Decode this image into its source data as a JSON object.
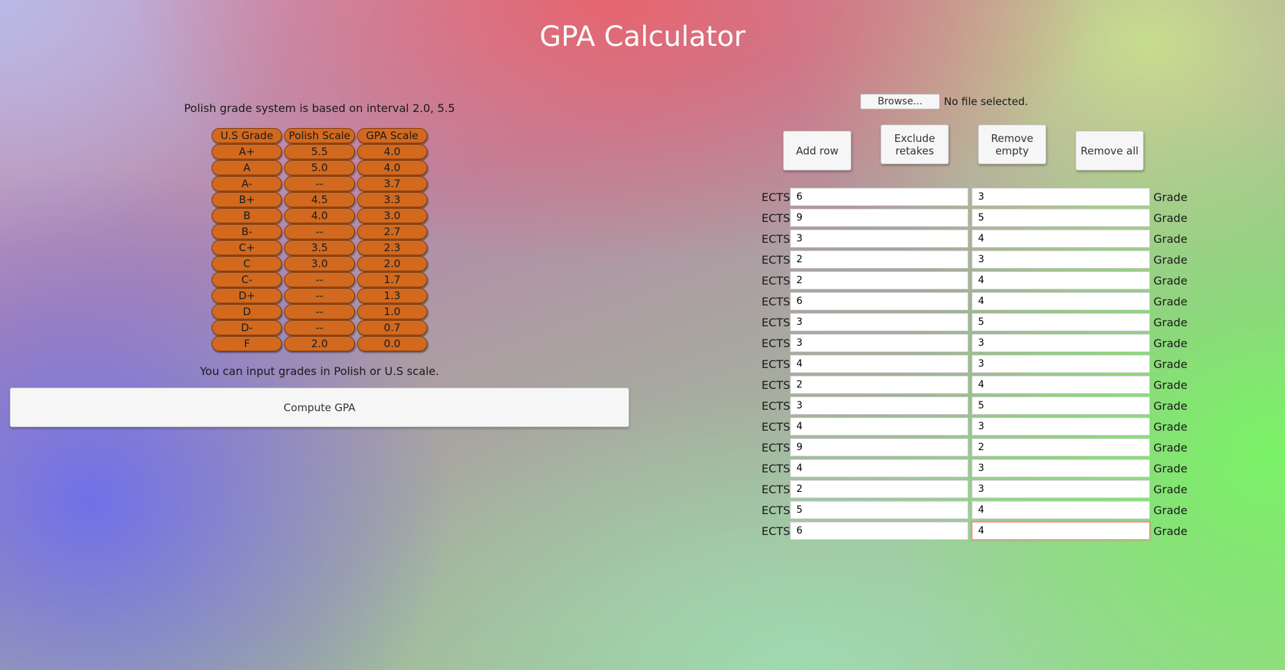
{
  "title": "GPA Calculator",
  "left": {
    "info_text": "Polish grade system is based on interval 2.0, 5.5",
    "table": {
      "headers": [
        "U.S Grade",
        "Polish Scale",
        "GPA Scale"
      ],
      "rows": [
        [
          "A+",
          "5.5",
          "4.0"
        ],
        [
          "A",
          "5.0",
          "4.0"
        ],
        [
          "A-",
          "--",
          "3.7"
        ],
        [
          "B+",
          "4.5",
          "3.3"
        ],
        [
          "B",
          "4.0",
          "3.0"
        ],
        [
          "B-",
          "--",
          "2.7"
        ],
        [
          "C+",
          "3.5",
          "2.3"
        ],
        [
          "C",
          "3.0",
          "2.0"
        ],
        [
          "C-",
          "--",
          "1.7"
        ],
        [
          "D+",
          "--",
          "1.3"
        ],
        [
          "D",
          "--",
          "1.0"
        ],
        [
          "D-",
          "--",
          "0.7"
        ],
        [
          "F",
          "2.0",
          "0.0"
        ]
      ]
    },
    "input_hint": "You can input grades in Polish or U.S scale.",
    "compute_label": "Compute GPA"
  },
  "right": {
    "browse_label": "Browse...",
    "file_status": "No file selected.",
    "buttons": {
      "add_row": "Add row",
      "exclude_retakes": "Exclude retakes",
      "remove_empty": "Remove empty",
      "remove_all": "Remove all"
    },
    "ects_label": "ECTS",
    "grade_label": "Grade",
    "rows": [
      {
        "ects": "6",
        "grade": "3"
      },
      {
        "ects": "9",
        "grade": "5"
      },
      {
        "ects": "3",
        "grade": "4"
      },
      {
        "ects": "2",
        "grade": "3"
      },
      {
        "ects": "2",
        "grade": "4"
      },
      {
        "ects": "6",
        "grade": "4"
      },
      {
        "ects": "3",
        "grade": "5"
      },
      {
        "ects": "3",
        "grade": "3"
      },
      {
        "ects": "4",
        "grade": "3"
      },
      {
        "ects": "2",
        "grade": "4"
      },
      {
        "ects": "3",
        "grade": "5"
      },
      {
        "ects": "4",
        "grade": "3"
      },
      {
        "ects": "9",
        "grade": "2"
      },
      {
        "ects": "4",
        "grade": "3"
      },
      {
        "ects": "2",
        "grade": "3"
      },
      {
        "ects": "5",
        "grade": "4"
      },
      {
        "ects": "6",
        "grade": "4"
      }
    ]
  },
  "colors": {
    "table_cell": "#d2691e",
    "focus_border": "#f08a8a"
  }
}
